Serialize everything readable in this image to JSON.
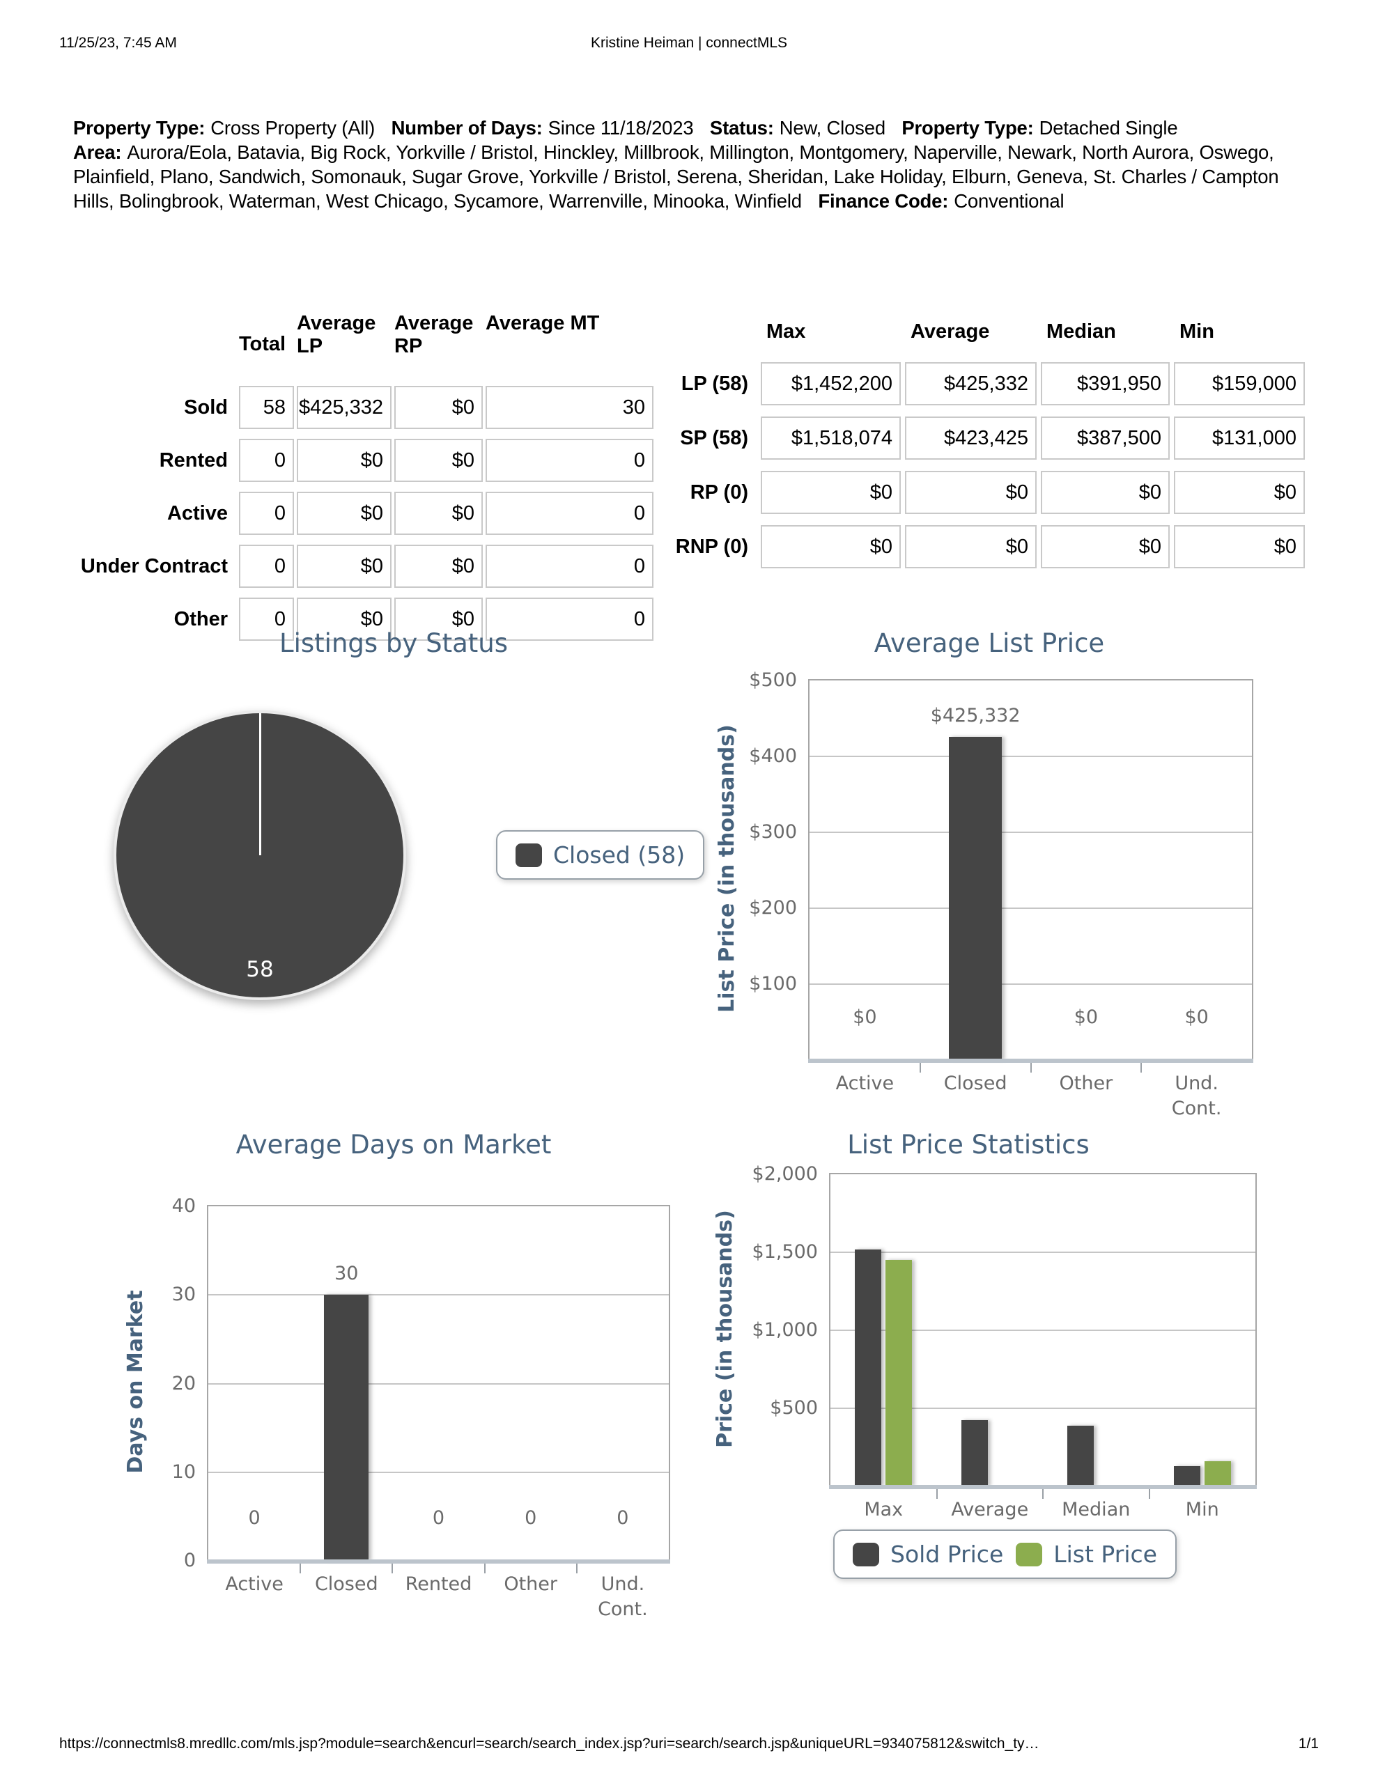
{
  "page": {
    "printed_at": "11/25/23, 7:45 AM",
    "header_title": "Kristine Heiman | connectMLS",
    "footer_url": "https://connectmls8.mredllc.com/mls.jsp?module=search&encurl=search/search_index.jsp?uri=search/search.jsp&uniqueURL=934075812&switch_ty…",
    "page_number": "1/1"
  },
  "theme": {
    "title_color": "#46627d",
    "tick_color": "#6a6a6a",
    "bar_dark": "#454545",
    "bar_green": "#8cad4e"
  },
  "criteria": {
    "segments": [
      {
        "label": "Property Type:",
        "text": "Cross Property (All)"
      },
      {
        "label": "Number of Days:",
        "text": "Since 11/18/2023"
      },
      {
        "label": "Status:",
        "text": "New, Closed"
      },
      {
        "label": "Property Type:",
        "text": "Detached Single"
      },
      {
        "label": "Area:",
        "text": "Aurora/Eola, Batavia, Big Rock, Yorkville / Bristol, Hinckley, Millbrook, Millington, Montgomery, Naperville, Newark, North Aurora, Oswego, Plainfield, Plano, Sandwich, Somonauk, Sugar Grove, Yorkville / Bristol, Serena, Sheridan, Lake Holiday, Elburn, Geneva, St. Charles / Campton Hills, Bolingbrook, Waterman, West Chicago, Sycamore, Warrenville, Minooka, Winfield"
      },
      {
        "label": "Finance Code:",
        "text": "Conventional"
      }
    ]
  },
  "status_table": {
    "headers": [
      "Total",
      "Average LP",
      "Average RP",
      "Average MT"
    ],
    "rows": [
      {
        "label": "Sold",
        "values": [
          "58",
          "$425,332",
          "$0",
          "30"
        ]
      },
      {
        "label": "Rented",
        "values": [
          "0",
          "$0",
          "$0",
          "0"
        ]
      },
      {
        "label": "Active",
        "values": [
          "0",
          "$0",
          "$0",
          "0"
        ]
      },
      {
        "label": "Under Contract",
        "values": [
          "0",
          "$0",
          "$0",
          "0"
        ]
      },
      {
        "label": "Other",
        "values": [
          "0",
          "$0",
          "$0",
          "0"
        ]
      }
    ]
  },
  "price_table": {
    "headers": [
      "Max",
      "Average",
      "Median",
      "Min"
    ],
    "rows": [
      {
        "label": "LP (58)",
        "values": [
          "$1,452,200",
          "$425,332",
          "$391,950",
          "$159,000"
        ]
      },
      {
        "label": "SP (58)",
        "values": [
          "$1,518,074",
          "$423,425",
          "$387,500",
          "$131,000"
        ]
      },
      {
        "label": "RP (0)",
        "values": [
          "$0",
          "$0",
          "$0",
          "$0"
        ]
      },
      {
        "label": "RNP (0)",
        "values": [
          "$0",
          "$0",
          "$0",
          "$0"
        ]
      }
    ]
  },
  "chart_data": [
    {
      "type": "pie",
      "title": "Listings by Status",
      "slices": [
        {
          "label": "Closed",
          "value": 58,
          "color": "#454545"
        }
      ],
      "data_label": "58",
      "legend": [
        {
          "label": "Closed (58)",
          "color": "#454545"
        }
      ],
      "legend_position": "right"
    },
    {
      "type": "bar",
      "title": "Average List Price",
      "ylabel": "List Price (in thousands)",
      "categories": [
        "Active",
        "Closed",
        "Other",
        "Und.\nCont."
      ],
      "values": [
        0,
        425.332,
        0,
        0
      ],
      "value_labels": [
        "$0",
        "$425,332",
        "$0",
        "$0"
      ],
      "bar_color": "#454545",
      "ylim": [
        0,
        500
      ],
      "yticks": [
        {
          "value": 500,
          "label": "$500"
        },
        {
          "value": 400,
          "label": "$400"
        },
        {
          "value": 300,
          "label": "$300"
        },
        {
          "value": 200,
          "label": "$200"
        },
        {
          "value": 100,
          "label": "$100"
        }
      ],
      "grid": true,
      "legend_position": "none"
    },
    {
      "type": "bar",
      "title": "Average Days on Market",
      "ylabel": "Days on Market",
      "categories": [
        "Active",
        "Closed",
        "Rented",
        "Other",
        "Und.\nCont."
      ],
      "values": [
        0,
        30,
        0,
        0,
        0
      ],
      "value_labels": [
        "0",
        "30",
        "0",
        "0",
        "0"
      ],
      "bar_color": "#454545",
      "ylim": [
        0,
        40
      ],
      "yticks": [
        {
          "value": 40,
          "label": "40"
        },
        {
          "value": 30,
          "label": "30"
        },
        {
          "value": 20,
          "label": "20"
        },
        {
          "value": 10,
          "label": "10"
        },
        {
          "value": 0,
          "label": "0"
        }
      ],
      "grid": true,
      "legend_position": "none"
    },
    {
      "type": "bar",
      "title": "List Price Statistics",
      "ylabel": "Price (in thousands)",
      "categories": [
        "Max",
        "Average",
        "Median",
        "Min"
      ],
      "series": [
        {
          "name": "Sold Price",
          "color": "#454545",
          "values": [
            1518.074,
            423.425,
            387.5,
            131
          ]
        },
        {
          "name": "List Price",
          "color": "#8cad4e",
          "values": [
            1452.2,
            null,
            null,
            159
          ]
        }
      ],
      "ylim": [
        0,
        2000
      ],
      "yticks": [
        {
          "value": 2000,
          "label": "$2,000"
        },
        {
          "value": 1500,
          "label": "$1,500"
        },
        {
          "value": 1000,
          "label": "$1,000"
        },
        {
          "value": 500,
          "label": "$500"
        }
      ],
      "grid": true,
      "legend_position": "bottom"
    }
  ]
}
